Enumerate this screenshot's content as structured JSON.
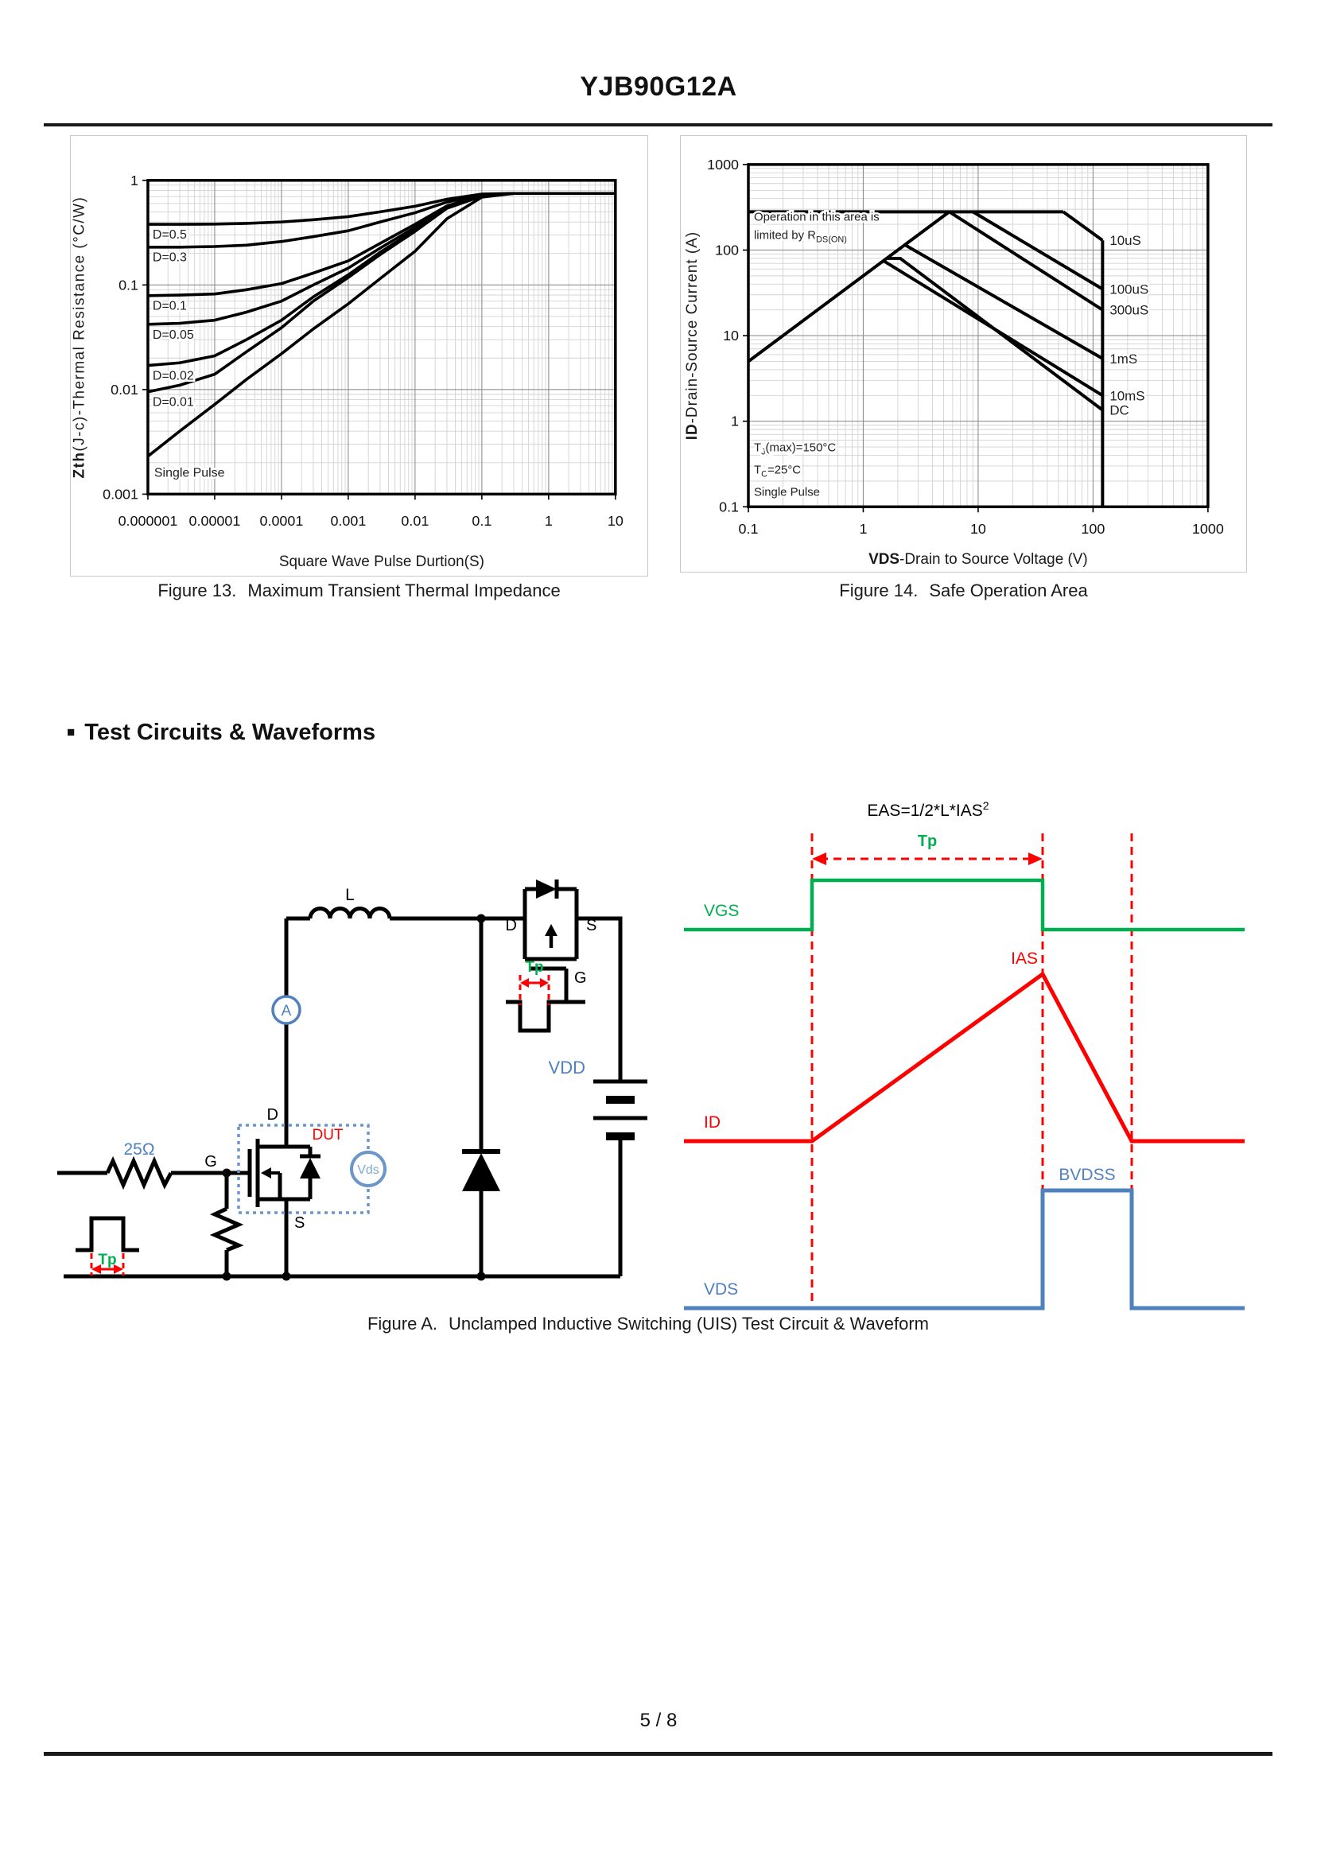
{
  "page": {
    "title": "YJB90G12A",
    "footer": "5 / 8"
  },
  "colors": {
    "blue": "#4f81bd",
    "light_blue": "#7fa8d4",
    "green": "#00b050",
    "red": "#ff0000",
    "line_black": "#000000"
  },
  "section": {
    "bullet": "■",
    "heading": "Test Circuits & Waveforms"
  },
  "captions": {
    "fig13_label": "Figure 13.",
    "fig13_text": "Maximum Transient Thermal Impedance",
    "fig14_label": "Figure 14.",
    "fig14_text": "Safe Operation Area",
    "figA_label": "Figure A.",
    "figA_text": "Unclamped Inductive Switching (UIS) Test Circuit & Waveform"
  },
  "chart_data": [
    {
      "id": "chart13",
      "type": "line",
      "x_scale": "log",
      "y_scale": "log",
      "title": "",
      "xlabel": "Square Wave Pulse Durtion(S)",
      "ylabel_bold": "Zth",
      "ylabel_rest": "(J-c)-Thermal Resistance (°C/W)",
      "xlim": [
        1e-06,
        10
      ],
      "ylim": [
        0.001,
        1
      ],
      "x_ticks": [
        "0.000001",
        "0.00001",
        "0.0001",
        "0.001",
        "0.01",
        "0.1",
        "1",
        "10"
      ],
      "y_ticks": [
        "1",
        "0.1",
        "0.01",
        "0.001"
      ],
      "grid": "log-minor",
      "x": [
        1e-06,
        3e-06,
        1e-05,
        3e-05,
        0.0001,
        0.0003,
        0.001,
        0.003,
        0.01,
        0.03,
        0.1,
        0.3,
        1,
        10
      ],
      "series": [
        {
          "name": "D=0.5",
          "y": [
            0.38,
            0.38,
            0.382,
            0.388,
            0.4,
            0.42,
            0.45,
            0.5,
            0.565,
            0.66,
            0.74,
            0.75,
            0.75,
            0.75
          ]
        },
        {
          "name": "D=0.3",
          "y": [
            0.23,
            0.23,
            0.233,
            0.24,
            0.26,
            0.29,
            0.33,
            0.4,
            0.49,
            0.62,
            0.73,
            0.75,
            0.75,
            0.75
          ]
        },
        {
          "name": "D=0.1",
          "y": [
            0.079,
            0.08,
            0.082,
            0.09,
            0.103,
            0.13,
            0.17,
            0.25,
            0.38,
            0.57,
            0.72,
            0.75,
            0.75,
            0.75
          ]
        },
        {
          "name": "D=0.05",
          "y": [
            0.042,
            0.043,
            0.046,
            0.055,
            0.07,
            0.1,
            0.145,
            0.225,
            0.355,
            0.555,
            0.715,
            0.75,
            0.75,
            0.75
          ]
        },
        {
          "name": "D=0.02",
          "y": [
            0.017,
            0.018,
            0.021,
            0.03,
            0.046,
            0.077,
            0.125,
            0.205,
            0.335,
            0.545,
            0.71,
            0.75,
            0.75,
            0.75
          ]
        },
        {
          "name": "D=0.01",
          "y": [
            0.0095,
            0.011,
            0.014,
            0.023,
            0.039,
            0.07,
            0.118,
            0.195,
            0.325,
            0.54,
            0.705,
            0.75,
            0.75,
            0.75
          ]
        },
        {
          "name": "Single Pulse",
          "y": [
            0.0023,
            0.004,
            0.0072,
            0.0125,
            0.022,
            0.038,
            0.066,
            0.115,
            0.21,
            0.43,
            0.69,
            0.75,
            0.75,
            0.75
          ]
        }
      ]
    },
    {
      "id": "chart14",
      "type": "line",
      "x_scale": "log",
      "y_scale": "log",
      "title": "",
      "xlabel_bold": "VDS",
      "xlabel_rest": "-Drain to Source Voltage (V)",
      "ylabel_bold": "ID",
      "ylabel_rest": "-Drain-Source Current (A)",
      "xlim": [
        0.1,
        1000
      ],
      "ylim": [
        0.1,
        1000
      ],
      "x_ticks": [
        "0.1",
        "1",
        "10",
        "100",
        "1000"
      ],
      "y_ticks": [
        "1000",
        "100",
        "10",
        "1",
        "0.1"
      ],
      "grid": "log-minor",
      "series": [
        {
          "name": "",
          "points": [
            [
              0.1,
              5
            ],
            [
              5.6,
              280
            ]
          ]
        },
        {
          "name": "",
          "points": [
            [
              0.1,
              280
            ],
            [
              55,
              280
            ]
          ]
        },
        {
          "name": "10uS",
          "points": [
            [
              55,
              280
            ],
            [
              121,
              130
            ]
          ]
        },
        {
          "name": "100uS",
          "points": [
            [
              9,
              280
            ],
            [
              121,
              35
            ]
          ]
        },
        {
          "name": "300uS",
          "points": [
            [
              5.6,
              280
            ],
            [
              121,
              20
            ]
          ]
        },
        {
          "name": "1mS",
          "points": [
            [
              2.3,
              115
            ],
            [
              121,
              5.4
            ]
          ]
        },
        {
          "name": "10mS",
          "points": [
            [
              1.5,
              75
            ],
            [
              121,
              2.0
            ]
          ]
        },
        {
          "name": "DC",
          "points": [
            [
              1.6,
              80
            ],
            [
              2.1,
              80
            ],
            [
              121,
              1.35
            ]
          ]
        },
        {
          "name": "",
          "points": [
            [
              121,
              130
            ],
            [
              121,
              0.1
            ]
          ]
        }
      ],
      "notes": {
        "area_line1": "Operation in this area is",
        "area_line2": "limited by R",
        "area_line2_sub": "DS(ON)",
        "tj_pre": "T",
        "tj_sub": "J",
        "tj_rest": "(max)=150°C",
        "tc_pre": "T",
        "tc_sub": "C",
        "tc_rest": "=25°C",
        "single_pulse": "Single Pulse"
      }
    }
  ],
  "circuit": {
    "r_gate": "25Ω",
    "tp_in": "Tp",
    "g": "G",
    "d": "D",
    "s": "S",
    "ammeter": "A",
    "inductor": "L",
    "dut": "DUT",
    "vds": "Vds",
    "vdd": "VDD",
    "drv_d": "D",
    "drv_s": "S",
    "drv_g": "G",
    "tp_drv": "Tp"
  },
  "waveform": {
    "eas": "EAS=1/2*L*IAS",
    "eas_sup": "2",
    "tp": "Tp",
    "vgs": "VGS",
    "id": "ID",
    "ias": "IAS",
    "vds": "VDS",
    "bvdss": "BVDSS"
  }
}
